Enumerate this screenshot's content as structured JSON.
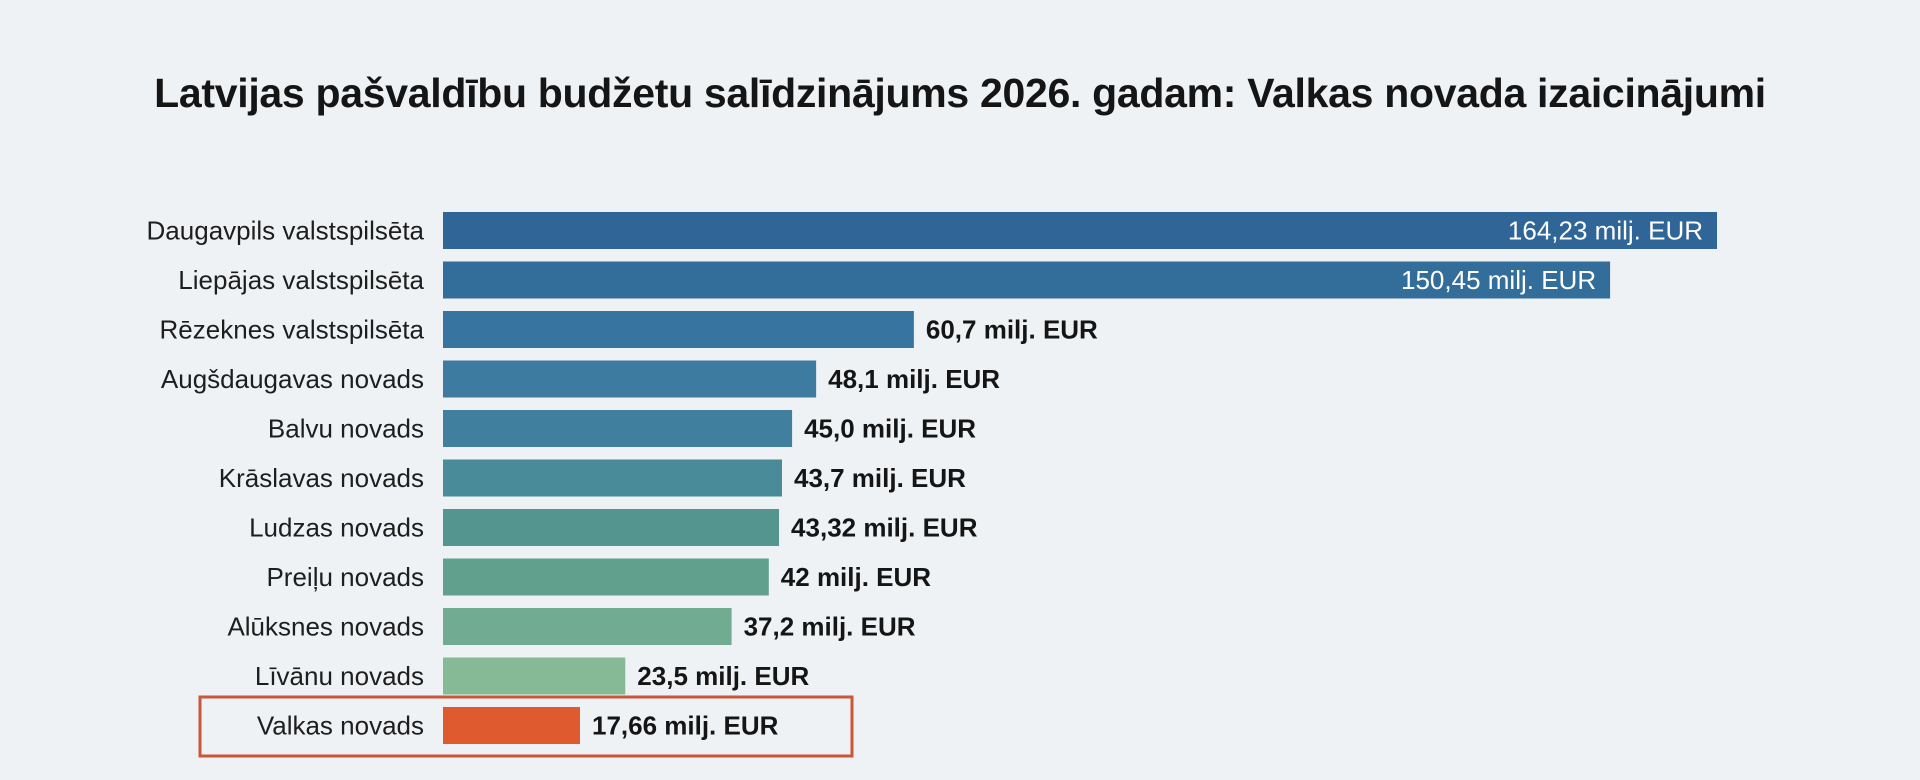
{
  "chart_data": {
    "type": "bar",
    "orientation": "horizontal",
    "title": "Latvijas pašvaldību budžetu salīdzinājums 2026. gadam: Valkas novada izaicinājumi",
    "categories": [
      "Daugavpils valstspilsēta",
      "Liepājas valstspilsēta",
      "Rēzeknes valstspilsēta",
      "Augšdaugavas novads",
      "Balvu novads",
      "Krāslavas novads",
      "Ludzas novads",
      "Preiļu novads",
      "Alūksnes novads",
      "Līvānu novads",
      "Valkas novads"
    ],
    "values": [
      164.23,
      150.45,
      60.7,
      48.1,
      45.0,
      43.7,
      43.32,
      42,
      37.2,
      23.5,
      17.66
    ],
    "data_labels": [
      "164,23 milj. EUR",
      "150,45 milj. EUR",
      "60,7 milj. EUR",
      "48,1 milj. EUR",
      "45,0 milj. EUR",
      "43,7 milj. EUR",
      "43,32 milj. EUR",
      "42 milj. EUR",
      "37,2 milj. EUR",
      "23,5 milj. EUR",
      "17,66 milj. EUR"
    ],
    "unit": "milj. EUR",
    "colors": [
      "#2f6597",
      "#336e9b",
      "#3874a0",
      "#3d7ba1",
      "#417f9f",
      "#4a8b99",
      "#549590",
      "#62a08e",
      "#71ab92",
      "#86ba96",
      "#e05a30"
    ],
    "highlight": {
      "category": "Valkas novads",
      "border_color": "#c9573a"
    },
    "xlim": [
      0,
      164.23
    ],
    "grid": false,
    "axes_visible": false,
    "legend": "none"
  }
}
